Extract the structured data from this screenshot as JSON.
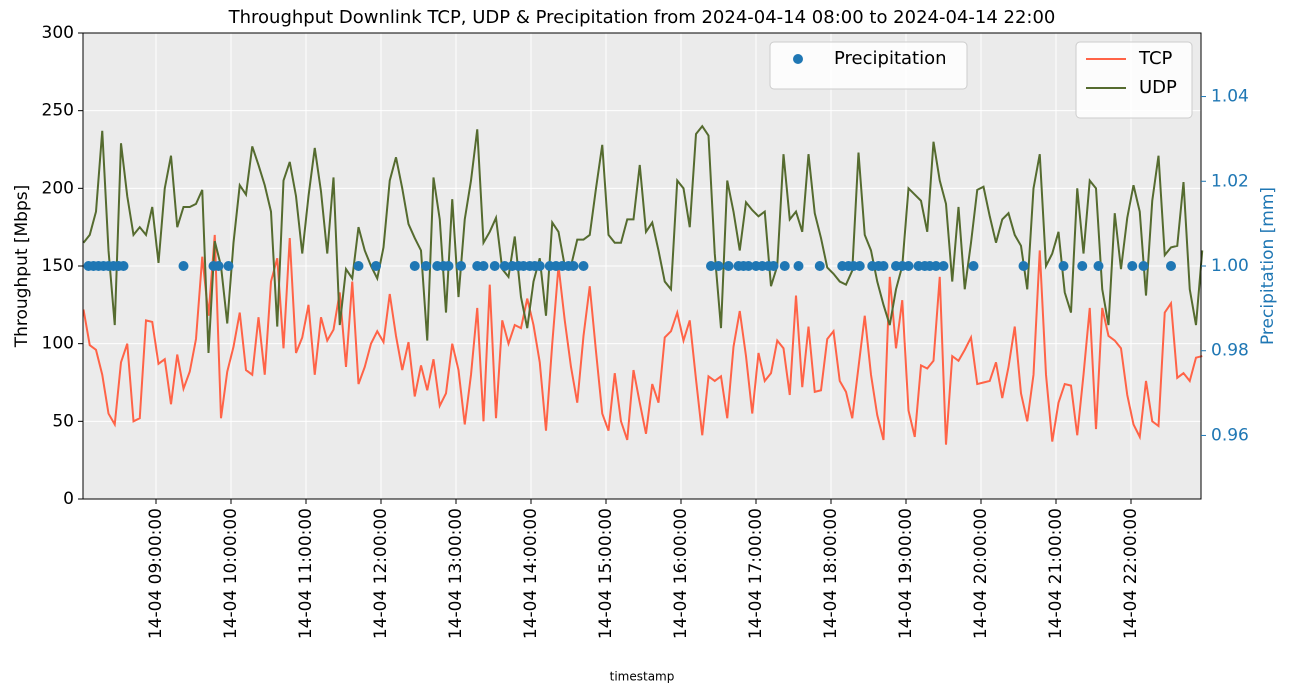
{
  "chart_data": {
    "type": "line",
    "title": "Throughput Downlink TCP, UDP & Precipitation from 2024-04-14 08:00 to 2024-04-14 22:00",
    "xlabel": "timestamp",
    "ylabel": "Throughput [Mbps]",
    "y2label": "Precipitation [mm]",
    "x": [
      "14-04 08:02:00",
      "14-04 08:07:00",
      "14-04 08:12:00",
      "14-04 08:17:00",
      "14-04 08:22:00",
      "14-04 08:27:00",
      "14-04 08:32:00",
      "14-04 08:37:00",
      "14-04 08:42:00",
      "14-04 08:47:00",
      "14-04 08:52:00",
      "14-04 08:57:00",
      "14-04 09:02:00",
      "14-04 09:07:00",
      "14-04 09:12:00",
      "14-04 09:17:00",
      "14-04 09:22:00",
      "14-04 09:27:00",
      "14-04 09:32:00",
      "14-04 09:37:00",
      "14-04 09:42:00",
      "14-04 09:47:00",
      "14-04 09:52:00",
      "14-04 09:57:00",
      "14-04 10:02:00",
      "14-04 10:07:00",
      "14-04 10:12:00",
      "14-04 10:17:00",
      "14-04 10:22:00",
      "14-04 10:27:00",
      "14-04 10:32:00",
      "14-04 10:37:00",
      "14-04 10:42:00",
      "14-04 10:47:00",
      "14-04 10:52:00",
      "14-04 10:57:00",
      "14-04 11:02:00",
      "14-04 11:07:00",
      "14-04 11:12:00",
      "14-04 11:17:00",
      "14-04 11:22:00",
      "14-04 11:27:00",
      "14-04 11:32:00",
      "14-04 11:37:00",
      "14-04 11:42:00",
      "14-04 11:47:00",
      "14-04 11:52:00",
      "14-04 11:57:00",
      "14-04 12:02:00",
      "14-04 12:07:00",
      "14-04 12:12:00",
      "14-04 12:17:00",
      "14-04 12:22:00",
      "14-04 12:27:00",
      "14-04 12:32:00",
      "14-04 12:37:00",
      "14-04 12:42:00",
      "14-04 12:47:00",
      "14-04 12:52:00",
      "14-04 12:57:00",
      "14-04 13:02:00",
      "14-04 13:07:00",
      "14-04 13:12:00",
      "14-04 13:17:00",
      "14-04 13:22:00",
      "14-04 13:27:00",
      "14-04 13:32:00",
      "14-04 13:37:00",
      "14-04 13:42:00",
      "14-04 13:47:00",
      "14-04 13:52:00",
      "14-04 13:57:00",
      "14-04 14:02:00",
      "14-04 14:07:00",
      "14-04 14:12:00",
      "14-04 14:17:00",
      "14-04 14:22:00",
      "14-04 14:27:00",
      "14-04 14:32:00",
      "14-04 14:37:00",
      "14-04 14:42:00",
      "14-04 14:47:00",
      "14-04 14:52:00",
      "14-04 14:57:00",
      "14-04 15:02:00",
      "14-04 15:07:00",
      "14-04 15:12:00",
      "14-04 15:17:00",
      "14-04 15:22:00",
      "14-04 15:27:00",
      "14-04 15:32:00",
      "14-04 15:37:00",
      "14-04 15:42:00",
      "14-04 15:47:00",
      "14-04 15:52:00",
      "14-04 15:57:00",
      "14-04 16:02:00",
      "14-04 16:07:00",
      "14-04 16:12:00",
      "14-04 16:17:00",
      "14-04 16:22:00",
      "14-04 16:27:00",
      "14-04 16:32:00",
      "14-04 16:37:00",
      "14-04 16:42:00",
      "14-04 16:47:00",
      "14-04 16:52:00",
      "14-04 16:57:00",
      "14-04 17:02:00",
      "14-04 17:07:00",
      "14-04 17:12:00",
      "14-04 17:17:00",
      "14-04 17:22:00",
      "14-04 17:27:00",
      "14-04 17:32:00",
      "14-04 17:37:00",
      "14-04 17:42:00",
      "14-04 17:47:00",
      "14-04 17:52:00",
      "14-04 17:57:00",
      "14-04 18:02:00",
      "14-04 18:07:00",
      "14-04 18:12:00",
      "14-04 18:17:00",
      "14-04 18:22:00",
      "14-04 18:27:00",
      "14-04 18:32:00",
      "14-04 18:37:00",
      "14-04 18:42:00",
      "14-04 18:47:00",
      "14-04 18:52:00",
      "14-04 18:57:00",
      "14-04 19:02:00",
      "14-04 19:07:00",
      "14-04 19:12:00",
      "14-04 19:17:00",
      "14-04 19:22:00",
      "14-04 19:27:00",
      "14-04 19:32:00",
      "14-04 19:37:00",
      "14-04 19:42:00",
      "14-04 19:47:00",
      "14-04 19:52:00",
      "14-04 19:57:00",
      "14-04 20:02:00",
      "14-04 20:07:00",
      "14-04 20:12:00",
      "14-04 20:17:00",
      "14-04 20:22:00",
      "14-04 20:27:00",
      "14-04 20:32:00",
      "14-04 20:37:00",
      "14-04 20:42:00",
      "14-04 20:47:00",
      "14-04 20:52:00",
      "14-04 20:57:00",
      "14-04 21:02:00",
      "14-04 21:07:00",
      "14-04 21:12:00",
      "14-04 21:17:00",
      "14-04 21:22:00",
      "14-04 21:27:00",
      "14-04 21:32:00",
      "14-04 21:37:00",
      "14-04 21:42:00",
      "14-04 21:47:00",
      "14-04 21:52:00",
      "14-04 21:57:00",
      "14-04 22:02:00",
      "14-04 22:07:00",
      "14-04 22:12:00",
      "14-04 22:17:00",
      "14-04 22:22:00",
      "14-04 22:27:00",
      "14-04 22:32:00",
      "14-04 22:37:00",
      "14-04 22:42:00",
      "14-04 22:47:00",
      "14-04 22:52:00",
      "14-04 22:57:00"
    ],
    "series": [
      {
        "name": "TCP",
        "color": "#ff6347",
        "values": [
          122,
          99,
          96,
          80,
          55,
          48,
          88,
          100,
          50,
          52,
          115,
          114,
          87,
          90,
          61,
          93,
          71,
          82,
          103,
          156,
          118,
          170,
          52,
          82,
          98,
          120,
          83,
          80,
          117,
          80,
          140,
          155,
          97,
          168,
          94,
          104,
          125,
          80,
          117,
          102,
          109,
          133,
          85,
          140,
          74,
          85,
          100,
          108,
          101,
          132,
          105,
          83,
          101,
          66,
          86,
          70,
          90,
          60,
          68,
          100,
          83,
          48,
          80,
          123,
          50,
          138,
          52,
          115,
          100,
          112,
          110,
          129,
          112,
          88,
          44,
          100,
          150,
          115,
          85,
          62,
          105,
          137,
          95,
          55,
          44,
          81,
          50,
          38,
          83,
          62,
          42,
          74,
          62,
          104,
          108,
          120,
          102,
          115,
          77,
          41,
          79,
          76,
          79,
          52,
          98,
          121,
          92,
          55,
          94,
          76,
          81,
          102,
          97,
          67,
          131,
          72,
          111,
          69,
          70,
          103,
          108,
          76,
          69,
          52,
          85,
          118,
          80,
          54,
          38,
          143,
          97,
          128,
          57,
          40,
          86,
          84,
          89,
          143,
          35,
          92,
          89,
          96,
          104,
          74,
          75,
          76,
          88,
          65,
          85,
          111,
          68,
          50,
          80,
          160,
          80,
          37,
          62,
          74,
          73,
          41,
          80,
          123,
          45,
          123,
          105,
          102,
          97,
          67,
          48,
          40,
          76,
          50,
          47,
          120,
          126,
          78,
          81,
          76,
          91,
          92
        ]
      },
      {
        "name": "UDP",
        "color": "#556b2f",
        "values": [
          165,
          170,
          185,
          237,
          160,
          112,
          229,
          195,
          170,
          175,
          170,
          188,
          152,
          200,
          221,
          175,
          188,
          188,
          190,
          199,
          94,
          166,
          150,
          113,
          165,
          202,
          196,
          227,
          215,
          202,
          185,
          111,
          205,
          217,
          195,
          158,
          195,
          226,
          198,
          158,
          207,
          112,
          148,
          142,
          175,
          160,
          150,
          142,
          162,
          205,
          220,
          200,
          177,
          168,
          160,
          102,
          207,
          180,
          120,
          193,
          130,
          180,
          205,
          238,
          165,
          172,
          181,
          148,
          143,
          169,
          130,
          110,
          140,
          155,
          118,
          178,
          172,
          150,
          150,
          167,
          167,
          170,
          200,
          228,
          170,
          165,
          165,
          180,
          180,
          215,
          172,
          178,
          160,
          140,
          135,
          205,
          200,
          175,
          235,
          240,
          234,
          158,
          110,
          205,
          185,
          160,
          191,
          186,
          182,
          185,
          137,
          150,
          222,
          180,
          185,
          172,
          222,
          184,
          168,
          149,
          145,
          140,
          138,
          147,
          223,
          170,
          160,
          140,
          125,
          112,
          135,
          150,
          200,
          196,
          192,
          172,
          230,
          205,
          190,
          140,
          188,
          135,
          165,
          199,
          201,
          182,
          165,
          180,
          184,
          170,
          163,
          135,
          200,
          222,
          150,
          158,
          172,
          133,
          120,
          200,
          158,
          205,
          200,
          135,
          112,
          184,
          148,
          181,
          202,
          185,
          131,
          192,
          221,
          157,
          162,
          163,
          204,
          135,
          112,
          160
        ]
      },
      {
        "name": "Precipitation",
        "color": "#1f77b4",
        "type": "scatter",
        "axis": "y2",
        "x": [
          "14-04 08:06:00",
          "14-04 08:10:00",
          "14-04 08:14:00",
          "14-04 08:18:00",
          "14-04 08:22:00",
          "14-04 08:26:00",
          "14-04 08:30:00",
          "14-04 08:34:00",
          "14-04 09:22:00",
          "14-04 09:46:00",
          "14-04 09:50:00",
          "14-04 09:58:00",
          "14-04 11:42:00",
          "14-04 11:56:00",
          "14-04 12:27:00",
          "14-04 12:36:00",
          "14-04 12:45:00",
          "14-04 12:50:00",
          "14-04 12:54:00",
          "14-04 13:04:00",
          "14-04 13:17:00",
          "14-04 13:22:00",
          "14-04 13:31:00",
          "14-04 13:39:00",
          "14-04 13:45:00",
          "14-04 13:50:00",
          "14-04 13:54:00",
          "14-04 13:59:00",
          "14-04 14:03:00",
          "14-04 14:07:00",
          "14-04 14:15:00",
          "14-04 14:20:00",
          "14-04 14:25:00",
          "14-04 14:30:00",
          "14-04 14:34:00",
          "14-04 14:42:00",
          "14-04 16:24:00",
          "14-04 16:30:00",
          "14-04 16:38:00",
          "14-04 16:46:00",
          "14-04 16:50:00",
          "14-04 16:54:00",
          "14-04 17:00:00",
          "14-04 17:05:00",
          "14-04 17:10:00",
          "14-04 17:14:00",
          "14-04 17:23:00",
          "14-04 17:34:00",
          "14-04 17:51:00",
          "14-04 18:09:00",
          "14-04 18:14:00",
          "14-04 18:18:00",
          "14-04 18:23:00",
          "14-04 18:33:00",
          "14-04 18:38:00",
          "14-04 18:42:00",
          "14-04 18:52:00",
          "14-04 18:57:00",
          "14-04 19:02:00",
          "14-04 19:10:00",
          "14-04 19:15:00",
          "14-04 19:19:00",
          "14-04 19:24:00",
          "14-04 19:30:00",
          "14-04 19:54:00",
          "14-04 20:34:00",
          "14-04 21:06:00",
          "14-04 21:21:00",
          "14-04 21:34:00",
          "14-04 22:01:00",
          "14-04 22:10:00",
          "14-04 22:32:00"
        ],
        "values": [
          1,
          1,
          1,
          1,
          1,
          1,
          1,
          1,
          1,
          1,
          1,
          1,
          1,
          1,
          1,
          1,
          1,
          1,
          1,
          1,
          1,
          1,
          1,
          1,
          1,
          1,
          1,
          1,
          1,
          1,
          1,
          1,
          1,
          1,
          1,
          1,
          1,
          1,
          1,
          1,
          1,
          1,
          1,
          1,
          1,
          1,
          1,
          1,
          1,
          1,
          1,
          1,
          1,
          1,
          1,
          1,
          1,
          1,
          1,
          1,
          1,
          1,
          1,
          1,
          1,
          1,
          1,
          1,
          1,
          1,
          1,
          1
        ]
      }
    ],
    "xlim": [
      "14-04 08:01:36",
      "14-04 22:56:00"
    ],
    "xticks": [
      "14-04 09:00:00",
      "14-04 10:00:00",
      "14-04 11:00:00",
      "14-04 12:00:00",
      "14-04 13:00:00",
      "14-04 14:00:00",
      "14-04 15:00:00",
      "14-04 16:00:00",
      "14-04 17:00:00",
      "14-04 18:00:00",
      "14-04 19:00:00",
      "14-04 20:00:00",
      "14-04 21:00:00",
      "14-04 22:00:00"
    ],
    "ylim": [
      0,
      300
    ],
    "yticks": [
      0,
      50,
      100,
      150,
      200,
      250,
      300
    ],
    "y2lim": [
      0.945,
      1.055
    ],
    "y2ticks": [
      0.96,
      0.98,
      {
        "value": 1,
        "label": "1.00"
      },
      1.02,
      1.04
    ],
    "y2color": "#1f77b4",
    "grid": true,
    "legend": "upper right",
    "legend_y2": "upper center"
  }
}
